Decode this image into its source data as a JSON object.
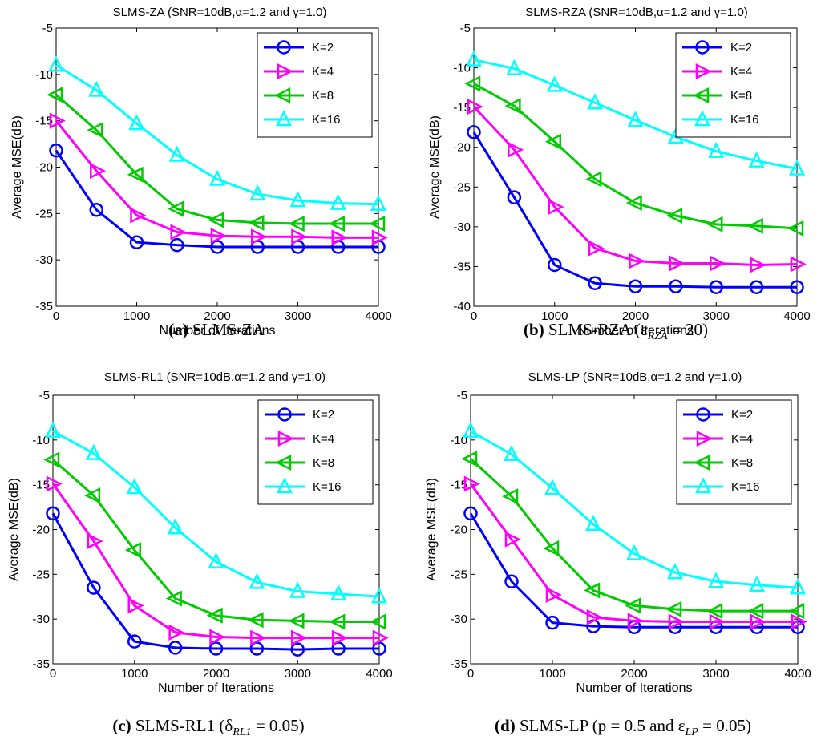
{
  "chart_data": [
    {
      "type": "line",
      "panel": "a",
      "title": "SLMS-ZA (SNR=10dB,α=1.2 and γ=1.0)",
      "caption_prefix": "(a)",
      "caption_rest": " SLMS-ZA",
      "xlabel": "Number of Iterations",
      "ylabel": "Average MSE(dB)",
      "x": [
        0,
        500,
        1000,
        1500,
        2000,
        2500,
        3000,
        3500,
        4000
      ],
      "xlim": [
        0,
        4000
      ],
      "ylim": [
        -35,
        -5
      ],
      "xticks": [
        0,
        1000,
        2000,
        3000,
        4000
      ],
      "yticks": [
        -5,
        -10,
        -15,
        -20,
        -25,
        -30,
        -35
      ],
      "legend_location": "top-right",
      "series": [
        {
          "name": "K=2",
          "marker": "circle",
          "color": "#0000ff",
          "values": [
            -18.2,
            -24.6,
            -28.1,
            -28.4,
            -28.6,
            -28.6,
            -28.6,
            -28.6,
            -28.6
          ]
        },
        {
          "name": "K=4",
          "marker": "triangle-right",
          "color": "#ff00ff",
          "values": [
            -15.0,
            -20.4,
            -25.2,
            -27.0,
            -27.4,
            -27.5,
            -27.5,
            -27.6,
            -27.6
          ]
        },
        {
          "name": "K=8",
          "marker": "triangle-left",
          "color": "#00cc00",
          "values": [
            -12.2,
            -16.0,
            -20.8,
            -24.5,
            -25.7,
            -26.0,
            -26.1,
            -26.1,
            -26.1
          ]
        },
        {
          "name": "K=16",
          "marker": "triangle-up",
          "color": "#00ffff",
          "values": [
            -9.0,
            -11.7,
            -15.3,
            -18.7,
            -21.3,
            -22.9,
            -23.6,
            -23.9,
            -24.0
          ]
        }
      ]
    },
    {
      "type": "line",
      "panel": "b",
      "title": "SLMS-RZA (SNR=10dB,α=1.2 and γ=1.0)",
      "caption_prefix": "(b)",
      "caption_rest": " SLMS-RZA (ε",
      "caption_sub": "RZA",
      "caption_end": " = 20)",
      "xlabel": "Number of Iterations",
      "ylabel": "Average MSE(dB)",
      "x": [
        0,
        500,
        1000,
        1500,
        2000,
        2500,
        3000,
        3500,
        4000
      ],
      "xlim": [
        0,
        4000
      ],
      "ylim": [
        -40,
        -5
      ],
      "xticks": [
        0,
        1000,
        2000,
        3000,
        4000
      ],
      "yticks": [
        -5,
        -10,
        -15,
        -20,
        -25,
        -30,
        -35,
        -40
      ],
      "legend_location": "top-right",
      "series": [
        {
          "name": "K=2",
          "marker": "circle",
          "color": "#0000ff",
          "values": [
            -18.1,
            -26.3,
            -34.8,
            -37.1,
            -37.5,
            -37.5,
            -37.6,
            -37.6,
            -37.6
          ]
        },
        {
          "name": "K=4",
          "marker": "triangle-right",
          "color": "#ff00ff",
          "values": [
            -14.9,
            -20.3,
            -27.5,
            -32.7,
            -34.3,
            -34.6,
            -34.6,
            -34.8,
            -34.7
          ]
        },
        {
          "name": "K=8",
          "marker": "triangle-left",
          "color": "#00cc00",
          "values": [
            -12.0,
            -14.8,
            -19.3,
            -24.0,
            -27.0,
            -28.6,
            -29.7,
            -29.9,
            -30.2
          ]
        },
        {
          "name": "K=16",
          "marker": "triangle-up",
          "color": "#00ffff",
          "values": [
            -9.0,
            -10.1,
            -12.2,
            -14.4,
            -16.6,
            -18.7,
            -20.5,
            -21.7,
            -22.7
          ]
        }
      ]
    },
    {
      "type": "line",
      "panel": "c",
      "title": "SLMS-RL1 (SNR=10dB,α=1.2 and γ=1.0)",
      "caption_prefix": "(c)",
      "caption_rest": " SLMS-RL1 (δ",
      "caption_sub": "RL1",
      "caption_end": " = 0.05)",
      "xlabel": "Number of Iterations",
      "ylabel": "Average MSE(dB)",
      "x": [
        0,
        500,
        1000,
        1500,
        2000,
        2500,
        3000,
        3500,
        4000
      ],
      "xlim": [
        0,
        4000
      ],
      "ylim": [
        -35,
        -5
      ],
      "xticks": [
        0,
        1000,
        2000,
        3000,
        4000
      ],
      "yticks": [
        -5,
        -10,
        -15,
        -20,
        -25,
        -30,
        -35
      ],
      "legend_location": "top-right",
      "series": [
        {
          "name": "K=2",
          "marker": "circle",
          "color": "#0000ff",
          "values": [
            -18.2,
            -26.5,
            -32.5,
            -33.2,
            -33.3,
            -33.3,
            -33.4,
            -33.3,
            -33.3
          ]
        },
        {
          "name": "K=4",
          "marker": "triangle-right",
          "color": "#ff00ff",
          "values": [
            -14.9,
            -21.3,
            -28.5,
            -31.5,
            -32.0,
            -32.1,
            -32.1,
            -32.1,
            -32.1
          ]
        },
        {
          "name": "K=8",
          "marker": "triangle-left",
          "color": "#00cc00",
          "values": [
            -12.2,
            -16.2,
            -22.3,
            -27.7,
            -29.6,
            -30.1,
            -30.2,
            -30.3,
            -30.3
          ]
        },
        {
          "name": "K=16",
          "marker": "triangle-up",
          "color": "#00ffff",
          "values": [
            -9.0,
            -11.5,
            -15.3,
            -19.8,
            -23.6,
            -25.9,
            -26.9,
            -27.2,
            -27.5
          ]
        }
      ]
    },
    {
      "type": "line",
      "panel": "d",
      "title": "SLMS-LP (SNR=10dB,α=1.2 and γ=1.0)",
      "caption_prefix": "(d)",
      "caption_rest": " SLMS-LP (p = 0.5 and ε",
      "caption_sub": "LP",
      "caption_end": " = 0.05)",
      "xlabel": "Number of Iterations",
      "ylabel": "Average MSE(dB)",
      "x": [
        0,
        500,
        1000,
        1500,
        2000,
        2500,
        3000,
        3500,
        4000
      ],
      "xlim": [
        0,
        4000
      ],
      "ylim": [
        -35,
        -5
      ],
      "xticks": [
        0,
        1000,
        2000,
        3000,
        4000
      ],
      "yticks": [
        -5,
        -10,
        -15,
        -20,
        -25,
        -30,
        -35
      ],
      "legend_location": "top-right",
      "series": [
        {
          "name": "K=2",
          "marker": "circle",
          "color": "#0000ff",
          "values": [
            -18.2,
            -25.8,
            -30.4,
            -30.8,
            -30.9,
            -30.9,
            -30.9,
            -30.9,
            -30.9
          ]
        },
        {
          "name": "K=4",
          "marker": "triangle-right",
          "color": "#ff00ff",
          "values": [
            -14.9,
            -21.1,
            -27.3,
            -29.8,
            -30.2,
            -30.3,
            -30.3,
            -30.3,
            -30.3
          ]
        },
        {
          "name": "K=8",
          "marker": "triangle-left",
          "color": "#00cc00",
          "values": [
            -12.1,
            -16.3,
            -22.1,
            -26.8,
            -28.5,
            -28.9,
            -29.1,
            -29.1,
            -29.1
          ]
        },
        {
          "name": "K=16",
          "marker": "triangle-up",
          "color": "#00ffff",
          "values": [
            -9.0,
            -11.6,
            -15.4,
            -19.4,
            -22.7,
            -24.8,
            -25.8,
            -26.2,
            -26.5
          ]
        }
      ]
    }
  ]
}
